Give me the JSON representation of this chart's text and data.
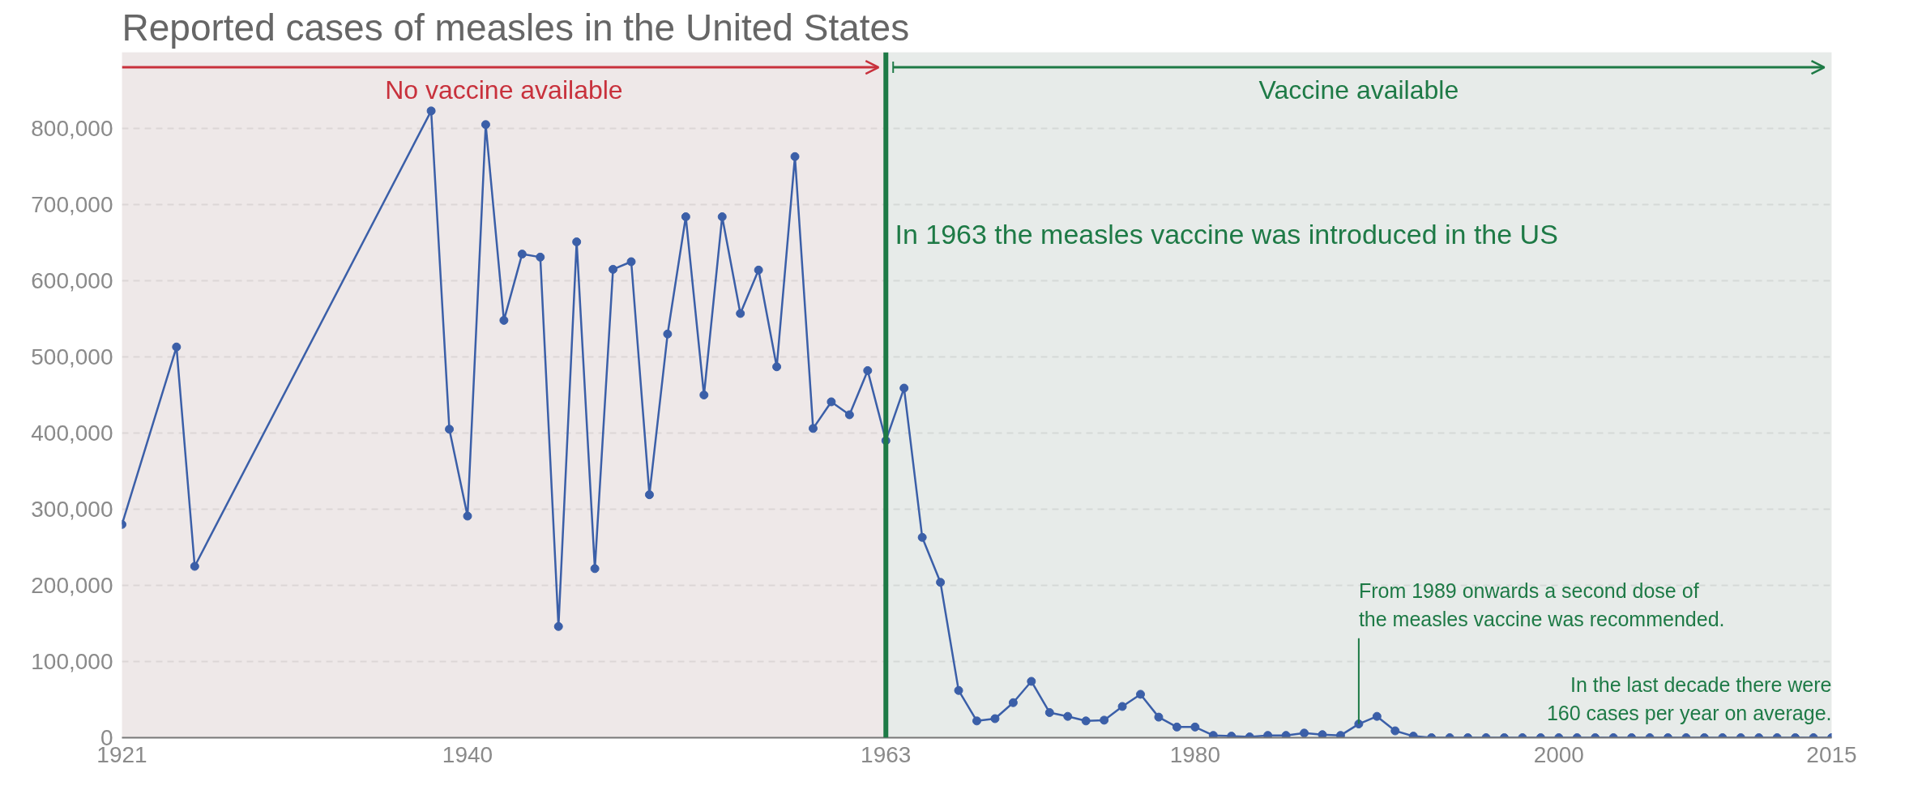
{
  "chart_data": {
    "type": "line",
    "title": "Reported cases of measles in the United States",
    "x": [
      1921,
      1924,
      1925,
      1938,
      1939,
      1940,
      1941,
      1942,
      1943,
      1944,
      1945,
      1946,
      1947,
      1948,
      1949,
      1950,
      1951,
      1952,
      1953,
      1954,
      1955,
      1956,
      1957,
      1958,
      1959,
      1960,
      1961,
      1962,
      1963,
      1964,
      1965,
      1966,
      1967,
      1968,
      1969,
      1970,
      1971,
      1972,
      1973,
      1974,
      1975,
      1976,
      1977,
      1978,
      1979,
      1980,
      1981,
      1982,
      1983,
      1984,
      1985,
      1986,
      1987,
      1988,
      1989,
      1990,
      1991,
      1992,
      1993,
      1994,
      1995,
      1996,
      1997,
      1998,
      1999,
      2000,
      2001,
      2002,
      2003,
      2004,
      2005,
      2006,
      2007,
      2008,
      2009,
      2010,
      2011,
      2012,
      2013,
      2014,
      2015
    ],
    "series": [
      {
        "color": "#3b5fa8",
        "values": [
          280000,
          513000,
          225000,
          823000,
          405000,
          291000,
          805000,
          548000,
          635000,
          631000,
          146000,
          651000,
          222000,
          615000,
          625000,
          319000,
          530000,
          684000,
          450000,
          684000,
          557000,
          614000,
          487000,
          763000,
          406000,
          441000,
          424000,
          482000,
          390000,
          459000,
          263000,
          204000,
          62000,
          22000,
          25000,
          46000,
          74000,
          33000,
          28000,
          22000,
          23000,
          41000,
          57000,
          27000,
          14000,
          14000,
          3000,
          2000,
          1000,
          3000,
          3000,
          6000,
          4000,
          3000,
          18000,
          28000,
          9000,
          2000,
          0,
          0,
          0,
          0,
          0,
          0,
          0,
          0,
          0,
          0,
          0,
          0,
          0,
          0,
          0,
          0,
          0,
          0,
          0,
          0,
          0,
          0,
          0
        ]
      }
    ],
    "xlim": [
      1921,
      2015
    ],
    "xticks": [
      1921,
      1940,
      {
        "value": 1963,
        "label": "1963"
      },
      1980,
      2000,
      2015
    ],
    "ylim": [
      0,
      900000
    ],
    "yticks": [
      0,
      {
        "value": 100000,
        "label": "100,000"
      },
      {
        "value": 200000,
        "label": "200,000"
      },
      {
        "value": 300000,
        "label": "300,000"
      },
      {
        "value": 400000,
        "label": "400,000"
      },
      {
        "value": 500000,
        "label": "500,000"
      },
      {
        "value": 600000,
        "label": "600,000"
      },
      {
        "value": 700000,
        "label": "700,000"
      },
      {
        "value": 800000,
        "label": "800,000"
      }
    ],
    "grid": "y",
    "marker": "circle",
    "line_style": "solid",
    "ref_lines": [
      {
        "axis": "x",
        "value": 1963,
        "label": "In 1963 the measles vaccine was introduced in the US",
        "color": "#1e7a46"
      }
    ],
    "bands": [
      {
        "axis": "x",
        "from": 1921,
        "to": 1963,
        "label": "No vaccine available",
        "color": "#c8313c"
      },
      {
        "axis": "x",
        "from": 1963,
        "to": 2015,
        "label": "Vaccine available",
        "color": "#1e7a46"
      }
    ],
    "annotations": [
      {
        "text": "From 1989 onwards a second dose of\nthe measles vaccine was recommended.",
        "x": 1989,
        "y": 18000
      },
      "In the last decade there were\n160 cases per year on average."
    ]
  }
}
